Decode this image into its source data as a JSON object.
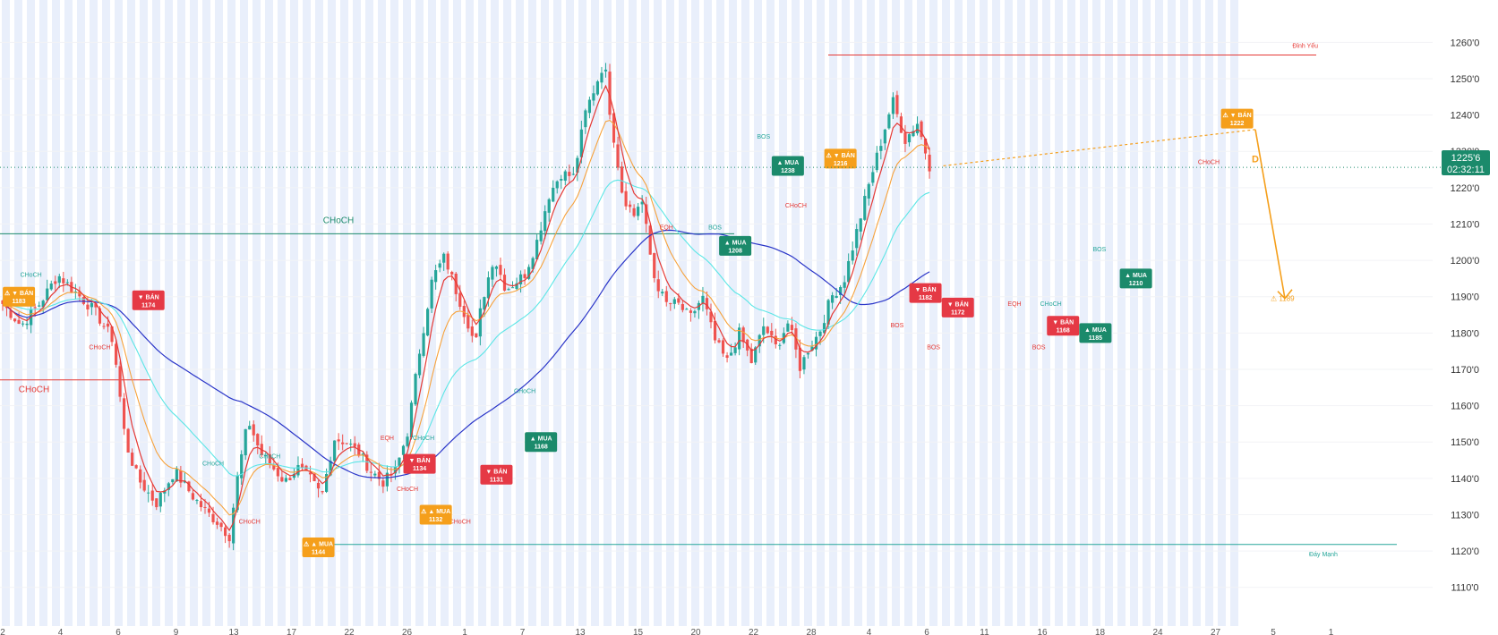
{
  "colors": {
    "bull": "#26a69a",
    "bear": "#ef5350",
    "ma_fast": "#e53935",
    "ma_mid": "#f7a23b",
    "ma_slow": "#5ce6e6",
    "ma_long": "#2a35c8",
    "buy": "#1b8a6b",
    "sell": "#e53945",
    "warn": "#f59f1b",
    "band": "#e9effb"
  },
  "chart_data": {
    "type": "candlestick",
    "ylim": [
      1105,
      1265
    ],
    "y_ticks": [
      "1260'0",
      "1250'0",
      "1240'0",
      "1230'0",
      "1220'0",
      "1210'0",
      "1200'0",
      "1190'0",
      "1180'0",
      "1170'0",
      "1160'0",
      "1150'0",
      "1140'0",
      "1130'0",
      "1120'0",
      "1110'0"
    ],
    "y_tick_values": [
      1260,
      1250,
      1240,
      1230,
      1220,
      1210,
      1200,
      1190,
      1180,
      1170,
      1160,
      1150,
      1140,
      1130,
      1120,
      1110
    ],
    "x_tick_labels": [
      "2",
      "4",
      "6",
      "9",
      "13",
      "17",
      "22",
      "26",
      "1",
      "7",
      "13",
      "15",
      "20",
      "22",
      "28",
      "4",
      "6",
      "11",
      "16",
      "18",
      "24",
      "27",
      "5",
      "1"
    ],
    "candle_count": 230,
    "close_path": [
      [
        0,
        1188
      ],
      [
        6,
        1182
      ],
      [
        12,
        1188
      ],
      [
        18,
        1196
      ],
      [
        24,
        1191
      ],
      [
        30,
        1186
      ],
      [
        36,
        1178
      ],
      [
        40,
        1150
      ],
      [
        44,
        1140
      ],
      [
        50,
        1133
      ],
      [
        56,
        1142
      ],
      [
        62,
        1135
      ],
      [
        66,
        1131
      ],
      [
        70,
        1128
      ],
      [
        74,
        1124
      ],
      [
        76,
        1138
      ],
      [
        80,
        1156
      ],
      [
        84,
        1147
      ],
      [
        88,
        1143
      ],
      [
        92,
        1139
      ],
      [
        96,
        1143
      ],
      [
        100,
        1140
      ],
      [
        104,
        1135
      ],
      [
        108,
        1151
      ],
      [
        112,
        1150
      ],
      [
        116,
        1147
      ],
      [
        120,
        1142
      ],
      [
        124,
        1139
      ],
      [
        128,
        1142
      ],
      [
        132,
        1153
      ],
      [
        136,
        1176
      ],
      [
        140,
        1195
      ],
      [
        144,
        1201
      ],
      [
        148,
        1191
      ],
      [
        152,
        1182
      ],
      [
        154,
        1176
      ],
      [
        156,
        1188
      ],
      [
        160,
        1201
      ],
      [
        164,
        1192
      ],
      [
        170,
        1196
      ],
      [
        174,
        1205
      ],
      [
        178,
        1218
      ],
      [
        182,
        1224
      ],
      [
        186,
        1223
      ],
      [
        190,
        1241
      ],
      [
        194,
        1250
      ],
      [
        196,
        1255
      ],
      [
        198,
        1240
      ],
      [
        202,
        1218
      ],
      [
        206,
        1212
      ],
      [
        208,
        1218
      ],
      [
        212,
        1196
      ],
      [
        216,
        1188
      ],
      [
        220,
        1188
      ],
      [
        224,
        1184
      ],
      [
        228,
        1190
      ],
      [
        232,
        1178
      ],
      [
        236,
        1172
      ],
      [
        240,
        1180
      ],
      [
        244,
        1172
      ],
      [
        248,
        1182
      ],
      [
        252,
        1176
      ],
      [
        256,
        1183
      ],
      [
        260,
        1170
      ],
      [
        262,
        1175
      ],
      [
        266,
        1180
      ],
      [
        270,
        1190
      ],
      [
        274,
        1194
      ],
      [
        278,
        1207
      ],
      [
        282,
        1220
      ],
      [
        286,
        1232
      ],
      [
        290,
        1244
      ],
      [
        294,
        1233
      ],
      [
        298,
        1238
      ],
      [
        302,
        1226
      ]
    ],
    "last_price": "1225'6",
    "countdown": "02:32:11",
    "horizontal_levels": [
      {
        "label": "Đỉnh Yếu",
        "price": 1256.5,
        "color": "#e53935"
      },
      {
        "label": "Đáy Mạnh",
        "price": 1121.8,
        "color": "#26a69a"
      },
      {
        "label": "CHoCH",
        "price": 1207.3,
        "color": "#1b8a6b"
      },
      {
        "label": "CHoCH",
        "price": 1167.1,
        "color": "#e53935"
      }
    ],
    "projection": {
      "letter": "D",
      "target_label": "1189",
      "target_price": 1189.5
    },
    "structure_labels": [
      {
        "text": "CHoCH",
        "x": 7,
        "y": 1195.5,
        "color": "#26a69a"
      },
      {
        "text": "CHoCH",
        "x": 24,
        "y": 1175.5,
        "color": "#e53935"
      },
      {
        "text": "CHoCH",
        "x": 52,
        "y": 1143.5,
        "color": "#26a69a"
      },
      {
        "text": "CHoCH",
        "x": 66,
        "y": 1145.5,
        "color": "#26a69a"
      },
      {
        "text": "CHoCH",
        "x": 61,
        "y": 1127.5,
        "color": "#e53935"
      },
      {
        "text": "EQH",
        "x": 95,
        "y": 1150.5,
        "color": "#e53935"
      },
      {
        "text": "CHoCH",
        "x": 104,
        "y": 1150.5,
        "color": "#26a69a"
      },
      {
        "text": "CHoCH",
        "x": 100,
        "y": 1136.5,
        "color": "#e53935"
      },
      {
        "text": "CHoCH",
        "x": 113,
        "y": 1127.5,
        "color": "#e53935"
      },
      {
        "text": "CHoCH",
        "x": 129,
        "y": 1163.5,
        "color": "#26a69a"
      },
      {
        "text": "EQH",
        "x": 164,
        "y": 1208.5,
        "color": "#e53935"
      },
      {
        "text": "BOS",
        "x": 176,
        "y": 1208.5,
        "color": "#26a69a"
      },
      {
        "text": "BOS",
        "x": 188,
        "y": 1233.5,
        "color": "#26a69a"
      },
      {
        "text": "CHoCH",
        "x": 196,
        "y": 1214.5,
        "color": "#e53935"
      },
      {
        "text": "BOS",
        "x": 221,
        "y": 1181.5,
        "color": "#e53935"
      },
      {
        "text": "BOS",
        "x": 230,
        "y": 1175.5,
        "color": "#e53935"
      },
      {
        "text": "EQH",
        "x": 250,
        "y": 1187.5,
        "color": "#e53935"
      },
      {
        "text": "CHoCH",
        "x": 259,
        "y": 1187.5,
        "color": "#26a69a"
      },
      {
        "text": "BOS",
        "x": 256,
        "y": 1175.5,
        "color": "#e53935"
      },
      {
        "text": "BOS",
        "x": 271,
        "y": 1202.5,
        "color": "#26a69a"
      },
      {
        "text": "CHoCH",
        "x": 298,
        "y": 1226.5,
        "color": "#e53935"
      }
    ],
    "signals": [
      {
        "type": "sell",
        "warn": true,
        "text": "BÁN",
        "price": "1183",
        "x": 4,
        "y": 1190
      },
      {
        "type": "sell",
        "warn": false,
        "text": "BÁN",
        "price": "1174",
        "x": 36,
        "y": 1189
      },
      {
        "type": "buy",
        "warn": true,
        "text": "MUA",
        "price": "1144",
        "x": 78,
        "y": 1121
      },
      {
        "type": "sell",
        "warn": false,
        "text": "BÁN",
        "price": "1134",
        "x": 103,
        "y": 1144
      },
      {
        "type": "buy",
        "warn": true,
        "text": "MUA",
        "price": "1132",
        "x": 107,
        "y": 1130
      },
      {
        "type": "sell",
        "warn": false,
        "text": "BÁN",
        "price": "1131",
        "x": 122,
        "y": 1141
      },
      {
        "type": "buy",
        "warn": false,
        "text": "MUA",
        "price": "1168",
        "x": 133,
        "y": 1150
      },
      {
        "type": "buy",
        "warn": false,
        "text": "MUA",
        "price": "1208",
        "x": 181,
        "y": 1204
      },
      {
        "type": "buy",
        "warn": false,
        "text": "MUA",
        "price": "1238",
        "x": 194,
        "y": 1226
      },
      {
        "type": "sell",
        "warn": true,
        "text": "BÁN",
        "price": "1216",
        "x": 207,
        "y": 1228
      },
      {
        "type": "sell",
        "warn": false,
        "text": "BÁN",
        "price": "1182",
        "x": 228,
        "y": 1191
      },
      {
        "type": "sell",
        "warn": false,
        "text": "BÁN",
        "price": "1172",
        "x": 236,
        "y": 1187
      },
      {
        "type": "sell",
        "warn": false,
        "text": "BÁN",
        "price": "1168",
        "x": 262,
        "y": 1182
      },
      {
        "type": "buy",
        "warn": false,
        "text": "MUA",
        "price": "1185",
        "x": 270,
        "y": 1180
      },
      {
        "type": "buy",
        "warn": false,
        "text": "MUA",
        "price": "1210",
        "x": 280,
        "y": 1195
      },
      {
        "type": "sell",
        "warn": true,
        "text": "BÁN",
        "price": "1222",
        "x": 305,
        "y": 1239
      }
    ]
  }
}
